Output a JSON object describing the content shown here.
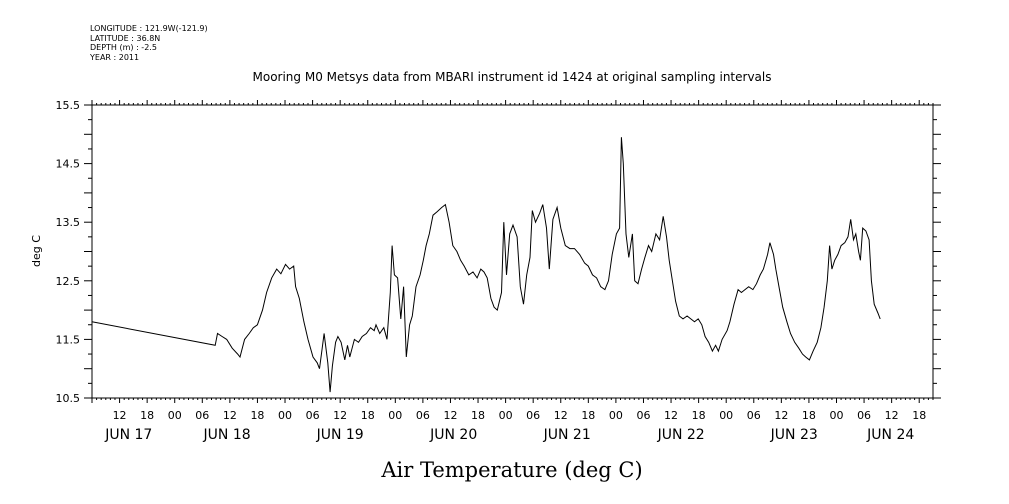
{
  "header": {
    "longitude": "LONGITUDE : 121.9W(-121.9)",
    "latitude": "LATITUDE : 36.8N",
    "depth": "DEPTH (m) : -2.5",
    "year": "YEAR : 2011"
  },
  "chart_data": {
    "type": "line",
    "title": "Mooring M0 Metsys data from MBARI instrument id 1424 at original sampling intervals",
    "xlabel": "Air Temperature (deg C)",
    "ylabel": "deg C",
    "xlim_hours": [
      0,
      183
    ],
    "ylim": [
      10.5,
      15.5
    ],
    "yticks": [
      "10.5",
      "11.5",
      "12.5",
      "13.5",
      "14.5",
      "15.5"
    ],
    "hour_ticks": [
      {
        "h": 6,
        "label": "12"
      },
      {
        "h": 12,
        "label": "18"
      },
      {
        "h": 18,
        "label": "00"
      },
      {
        "h": 24,
        "label": "06"
      },
      {
        "h": 30,
        "label": "12"
      },
      {
        "h": 36,
        "label": "18"
      },
      {
        "h": 42,
        "label": "00"
      },
      {
        "h": 48,
        "label": "06"
      },
      {
        "h": 54,
        "label": "12"
      },
      {
        "h": 60,
        "label": "18"
      },
      {
        "h": 66,
        "label": "00"
      },
      {
        "h": 72,
        "label": "06"
      },
      {
        "h": 78,
        "label": "12"
      },
      {
        "h": 84,
        "label": "18"
      },
      {
        "h": 90,
        "label": "00"
      },
      {
        "h": 96,
        "label": "06"
      },
      {
        "h": 102,
        "label": "12"
      },
      {
        "h": 108,
        "label": "18"
      },
      {
        "h": 114,
        "label": "00"
      },
      {
        "h": 120,
        "label": "06"
      },
      {
        "h": 126,
        "label": "12"
      },
      {
        "h": 132,
        "label": "18"
      },
      {
        "h": 138,
        "label": "00"
      },
      {
        "h": 144,
        "label": "06"
      },
      {
        "h": 150,
        "label": "12"
      },
      {
        "h": 156,
        "label": "18"
      },
      {
        "h": 162,
        "label": "00"
      },
      {
        "h": 168,
        "label": "06"
      },
      {
        "h": 174,
        "label": "12"
      },
      {
        "h": 180,
        "label": "18"
      }
    ],
    "day_labels": [
      {
        "h": 8,
        "label": "JUN 17"
      },
      {
        "h": 29.4,
        "label": "JUN 18"
      },
      {
        "h": 54,
        "label": "JUN 19"
      },
      {
        "h": 78.7,
        "label": "JUN 20"
      },
      {
        "h": 103.4,
        "label": "JUN 21"
      },
      {
        "h": 128.2,
        "label": "JUN 22"
      },
      {
        "h": 152.8,
        "label": "JUN 23"
      },
      {
        "h": 173.8,
        "label": "JUN 24"
      }
    ],
    "series": [
      {
        "values": [
          [
            0.0,
            11.8
          ],
          [
            26.8,
            11.4
          ],
          [
            27.3,
            11.6
          ],
          [
            28.3,
            11.55
          ],
          [
            29.3,
            11.5
          ],
          [
            30.5,
            11.35
          ],
          [
            31.7,
            11.25
          ],
          [
            32.2,
            11.2
          ],
          [
            33.2,
            11.5
          ],
          [
            34.2,
            11.6
          ],
          [
            35.1,
            11.7
          ],
          [
            36.0,
            11.75
          ],
          [
            37.1,
            12.0
          ],
          [
            38.0,
            12.3
          ],
          [
            39.1,
            12.55
          ],
          [
            40.2,
            12.7
          ],
          [
            41.1,
            12.62
          ],
          [
            42.1,
            12.78
          ],
          [
            43.0,
            12.7
          ],
          [
            43.9,
            12.75
          ],
          [
            44.3,
            12.4
          ],
          [
            45.1,
            12.2
          ],
          [
            46.1,
            11.8
          ],
          [
            47.0,
            11.5
          ],
          [
            48.1,
            11.2
          ],
          [
            49.0,
            11.1
          ],
          [
            49.5,
            11.0
          ],
          [
            50.1,
            11.35
          ],
          [
            50.5,
            11.6
          ],
          [
            51.3,
            11.1
          ],
          [
            51.8,
            10.6
          ],
          [
            52.3,
            11.05
          ],
          [
            53.0,
            11.45
          ],
          [
            53.5,
            11.55
          ],
          [
            54.2,
            11.45
          ],
          [
            55.0,
            11.15
          ],
          [
            55.6,
            11.4
          ],
          [
            56.1,
            11.2
          ],
          [
            57.1,
            11.5
          ],
          [
            58.0,
            11.45
          ],
          [
            58.8,
            11.55
          ],
          [
            59.7,
            11.6
          ],
          [
            60.6,
            11.7
          ],
          [
            61.4,
            11.65
          ],
          [
            61.8,
            11.75
          ],
          [
            62.6,
            11.6
          ],
          [
            63.5,
            11.7
          ],
          [
            64.2,
            11.5
          ],
          [
            64.9,
            12.3
          ],
          [
            65.3,
            13.1
          ],
          [
            65.8,
            12.6
          ],
          [
            66.5,
            12.55
          ],
          [
            67.2,
            11.85
          ],
          [
            67.8,
            12.4
          ],
          [
            68.4,
            11.2
          ],
          [
            69.1,
            11.75
          ],
          [
            69.7,
            11.9
          ],
          [
            70.5,
            12.4
          ],
          [
            71.4,
            12.6
          ],
          [
            72.1,
            12.85
          ],
          [
            72.7,
            13.1
          ],
          [
            73.4,
            13.3
          ],
          [
            74.2,
            13.62
          ],
          [
            75.1,
            13.68
          ],
          [
            76.1,
            13.75
          ],
          [
            76.9,
            13.8
          ],
          [
            77.7,
            13.5
          ],
          [
            78.5,
            13.1
          ],
          [
            79.4,
            13.0
          ],
          [
            80.2,
            12.85
          ],
          [
            81.0,
            12.75
          ],
          [
            82.0,
            12.6
          ],
          [
            82.9,
            12.65
          ],
          [
            83.8,
            12.55
          ],
          [
            84.6,
            12.7
          ],
          [
            85.3,
            12.65
          ],
          [
            86.0,
            12.55
          ],
          [
            86.8,
            12.2
          ],
          [
            87.5,
            12.05
          ],
          [
            88.2,
            12.0
          ],
          [
            89.1,
            12.3
          ],
          [
            89.6,
            13.5
          ],
          [
            90.2,
            12.6
          ],
          [
            90.9,
            13.3
          ],
          [
            91.6,
            13.45
          ],
          [
            92.5,
            13.25
          ],
          [
            93.2,
            12.4
          ],
          [
            93.9,
            12.1
          ],
          [
            94.6,
            12.6
          ],
          [
            95.3,
            12.9
          ],
          [
            95.8,
            13.7
          ],
          [
            96.5,
            13.5
          ],
          [
            97.4,
            13.65
          ],
          [
            98.1,
            13.8
          ],
          [
            98.9,
            13.4
          ],
          [
            99.5,
            12.7
          ],
          [
            100.3,
            13.55
          ],
          [
            101.2,
            13.75
          ],
          [
            102.0,
            13.4
          ],
          [
            103.0,
            13.1
          ],
          [
            104.0,
            13.05
          ],
          [
            105.0,
            13.05
          ],
          [
            106.1,
            12.95
          ],
          [
            107.2,
            12.8
          ],
          [
            108.0,
            12.75
          ],
          [
            108.9,
            12.6
          ],
          [
            109.8,
            12.55
          ],
          [
            110.7,
            12.4
          ],
          [
            111.6,
            12.35
          ],
          [
            112.4,
            12.5
          ],
          [
            113.2,
            12.95
          ],
          [
            114.1,
            13.3
          ],
          [
            114.8,
            13.4
          ],
          [
            115.2,
            14.95
          ],
          [
            115.6,
            14.5
          ],
          [
            116.2,
            13.3
          ],
          [
            116.8,
            12.9
          ],
          [
            117.6,
            13.3
          ],
          [
            118.1,
            12.5
          ],
          [
            118.8,
            12.45
          ],
          [
            119.6,
            12.7
          ],
          [
            120.3,
            12.9
          ],
          [
            121.1,
            13.1
          ],
          [
            121.8,
            13.0
          ],
          [
            122.7,
            13.3
          ],
          [
            123.5,
            13.2
          ],
          [
            124.3,
            13.6
          ],
          [
            125.0,
            13.25
          ],
          [
            125.6,
            12.85
          ],
          [
            126.3,
            12.5
          ],
          [
            127.0,
            12.15
          ],
          [
            127.8,
            11.9
          ],
          [
            128.6,
            11.85
          ],
          [
            129.5,
            11.9
          ],
          [
            130.3,
            11.85
          ],
          [
            131.1,
            11.8
          ],
          [
            131.9,
            11.85
          ],
          [
            132.7,
            11.75
          ],
          [
            133.4,
            11.55
          ],
          [
            134.2,
            11.45
          ],
          [
            135.0,
            11.3
          ],
          [
            135.7,
            11.4
          ],
          [
            136.3,
            11.3
          ],
          [
            137.1,
            11.5
          ],
          [
            138.2,
            11.65
          ],
          [
            138.8,
            11.8
          ],
          [
            139.7,
            12.1
          ],
          [
            140.6,
            12.35
          ],
          [
            141.3,
            12.3
          ],
          [
            142.1,
            12.35
          ],
          [
            142.9,
            12.4
          ],
          [
            143.8,
            12.35
          ],
          [
            144.6,
            12.45
          ],
          [
            145.4,
            12.6
          ],
          [
            146.1,
            12.7
          ],
          [
            147.0,
            12.95
          ],
          [
            147.5,
            13.15
          ],
          [
            148.3,
            12.95
          ],
          [
            148.8,
            12.7
          ],
          [
            149.6,
            12.35
          ],
          [
            150.3,
            12.05
          ],
          [
            151.2,
            11.8
          ],
          [
            152.0,
            11.6
          ],
          [
            152.9,
            11.45
          ],
          [
            153.8,
            11.35
          ],
          [
            154.6,
            11.25
          ],
          [
            155.3,
            11.2
          ],
          [
            156.1,
            11.15
          ],
          [
            156.9,
            11.3
          ],
          [
            157.8,
            11.45
          ],
          [
            158.6,
            11.7
          ],
          [
            159.3,
            12.05
          ],
          [
            160.0,
            12.5
          ],
          [
            160.5,
            13.1
          ],
          [
            161.0,
            12.7
          ],
          [
            161.6,
            12.85
          ],
          [
            162.3,
            12.95
          ],
          [
            163.0,
            13.1
          ],
          [
            163.8,
            13.15
          ],
          [
            164.5,
            13.25
          ],
          [
            165.1,
            13.55
          ],
          [
            165.7,
            13.2
          ],
          [
            166.2,
            13.3
          ],
          [
            166.8,
            13.0
          ],
          [
            167.2,
            12.85
          ],
          [
            167.7,
            13.4
          ],
          [
            168.4,
            13.35
          ],
          [
            169.1,
            13.2
          ],
          [
            169.6,
            12.5
          ],
          [
            170.2,
            12.1
          ],
          [
            171.0,
            11.95
          ],
          [
            171.5,
            11.85
          ]
        ]
      }
    ]
  }
}
